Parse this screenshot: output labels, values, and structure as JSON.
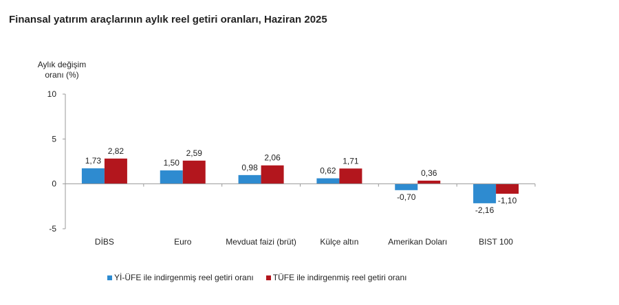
{
  "chart_data": {
    "type": "bar",
    "title": "Finansal yatırım araçlarının aylık reel getiri oranları, Haziran 2025",
    "ylabel_lines": [
      "Aylık değişim",
      "oranı (%)"
    ],
    "ylim": [
      -5,
      10
    ],
    "yticks": [
      10,
      5,
      0,
      -5
    ],
    "grid": false,
    "legend_position": "bottom",
    "categories": [
      "DİBS",
      "Euro",
      "Mevduat faizi (brüt)",
      "Külçe altın",
      "Amerikan Doları",
      "BIST 100"
    ],
    "series": [
      {
        "name": "Yİ-ÜFE ile indirgenmiş reel getiri oranı",
        "color": "#2e8bd0",
        "values": [
          1.73,
          1.5,
          0.98,
          0.62,
          -0.7,
          -2.16
        ],
        "labels": [
          "1,73",
          "1,50",
          "0,98",
          "0,62",
          "-0,70",
          "-2,16"
        ]
      },
      {
        "name": "TÜFE ile indirgenmiş reel getiri oranı",
        "color": "#b3161d",
        "values": [
          2.82,
          2.59,
          2.06,
          1.71,
          0.36,
          -1.1
        ],
        "labels": [
          "2,82",
          "2,59",
          "2,06",
          "1,71",
          "0,36",
          "-1,10"
        ]
      }
    ]
  }
}
